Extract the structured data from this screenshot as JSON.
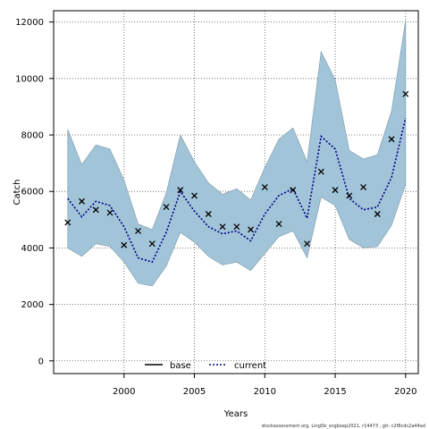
{
  "chart_data": {
    "type": "line",
    "xlabel": "Years",
    "ylabel": "Catch",
    "xlim": [
      1995,
      2020.9
    ],
    "ylim": [
      -450,
      12400
    ],
    "x_ticks": [
      2000,
      2005,
      2010,
      2015,
      2020
    ],
    "y_ticks": [
      0,
      2000,
      4000,
      6000,
      8000,
      10000,
      12000
    ],
    "x_tick_labels": [
      "2000",
      "2005",
      "2010",
      "2015",
      "2020"
    ],
    "y_tick_labels": [
      "0",
      "2000",
      "4000",
      "6000",
      "8000",
      "10000",
      "12000"
    ],
    "grid": true,
    "legend_position": "bottom-center",
    "years": [
      1996,
      1997,
      1998,
      1999,
      2000,
      2001,
      2002,
      2003,
      2004,
      2005,
      2006,
      2007,
      2008,
      2009,
      2010,
      2011,
      2012,
      2013,
      2014,
      2015,
      2016,
      2017,
      2018,
      2019,
      2020
    ],
    "band": {
      "upper": [
        8200,
        6950,
        7650,
        7500,
        6400,
        4850,
        4650,
        5950,
        8000,
        7050,
        6300,
        5900,
        6100,
        5700,
        6850,
        7850,
        8250,
        7050,
        10950,
        9950,
        7450,
        7150,
        7300,
        8850,
        12050
      ],
      "lower": [
        4000,
        3700,
        4150,
        4050,
        3500,
        2750,
        2650,
        3350,
        4550,
        4200,
        3700,
        3400,
        3500,
        3200,
        3800,
        4400,
        4600,
        3650,
        5800,
        5500,
        4300,
        4000,
        4050,
        4800,
        6250
      ],
      "fill_color": "#a2c4d8",
      "edge_color": "#7a98ab"
    },
    "series": [
      {
        "name": "base",
        "style": "solid",
        "color": "#000000",
        "values": []
      },
      {
        "name": "current",
        "style": "dotted",
        "color": "#00008b",
        "values": [
          5750,
          5100,
          5650,
          5500,
          4750,
          3650,
          3500,
          4550,
          6000,
          5300,
          4750,
          4500,
          4600,
          4250,
          5200,
          5850,
          6100,
          5050,
          7950,
          7500,
          5750,
          5350,
          5450,
          6500,
          8600
        ]
      }
    ],
    "observed": {
      "marker": "x",
      "color": "#000000",
      "values": [
        4900,
        5650,
        5350,
        5250,
        4100,
        4600,
        4150,
        5450,
        6050,
        5850,
        5200,
        4750,
        4750,
        4650,
        6150,
        4850,
        6050,
        4150,
        6700,
        6050,
        5850,
        6150,
        5200,
        7850,
        9450
      ]
    }
  },
  "footnote": "stockassessment.org, Ling5b_sngboep2021, r14473 , git: c2f8cdc2a44ad"
}
